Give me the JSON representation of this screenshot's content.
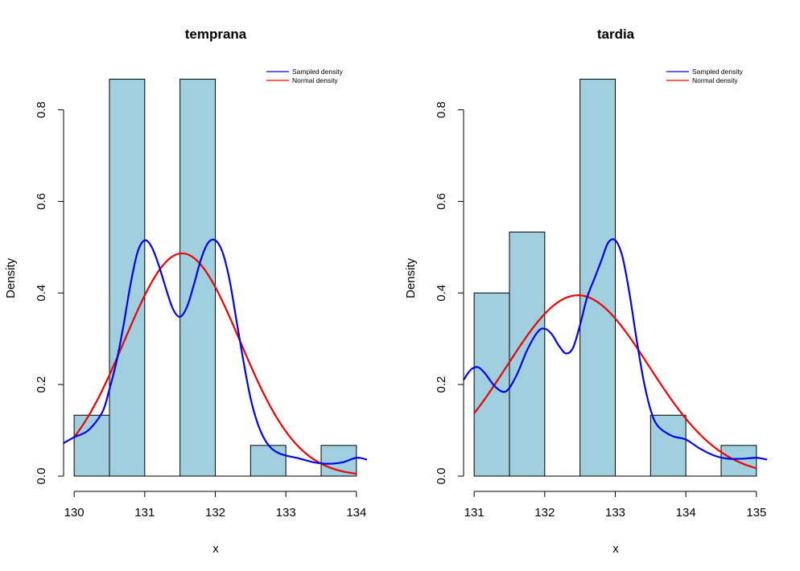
{
  "colors": {
    "bar_fill": "#a0d0e0",
    "sampled": "#0000ee",
    "normal": "#ee0000",
    "axis": "#000000"
  },
  "chart_data": [
    {
      "type": "histogram",
      "title": "temprana",
      "xlabel": "x",
      "ylabel": "Density",
      "xlim": [
        129.85,
        134.15
      ],
      "ylim": [
        0,
        0.866
      ],
      "x_ticks": [
        130,
        131,
        132,
        133,
        134
      ],
      "y_ticks": [
        0.0,
        0.2,
        0.4,
        0.6,
        0.8
      ],
      "y_tick_labels": [
        "0.0",
        "0.2",
        "0.4",
        "0.6",
        "0.8"
      ],
      "bins": [
        {
          "start": 130.0,
          "end": 130.5,
          "density": 0.133
        },
        {
          "start": 130.5,
          "end": 131.0,
          "density": 0.867
        },
        {
          "start": 131.0,
          "end": 131.5,
          "density": 0.0
        },
        {
          "start": 131.5,
          "end": 132.0,
          "density": 0.867
        },
        {
          "start": 132.0,
          "end": 132.5,
          "density": 0.0
        },
        {
          "start": 132.5,
          "end": 133.0,
          "density": 0.067
        },
        {
          "start": 133.0,
          "end": 133.5,
          "density": 0.0
        },
        {
          "start": 133.5,
          "end": 134.0,
          "density": 0.067
        }
      ],
      "series": [
        {
          "name": "Sampled density",
          "color": "#0000ee",
          "x": [
            129.85,
            130.0,
            130.2,
            130.4,
            130.5,
            130.6,
            130.7,
            130.8,
            130.9,
            131.0,
            131.1,
            131.2,
            131.3,
            131.4,
            131.5,
            131.6,
            131.7,
            131.8,
            131.9,
            132.0,
            132.1,
            132.2,
            132.3,
            132.4,
            132.5,
            132.6,
            132.7,
            132.8,
            132.9,
            133.0,
            133.2,
            133.4,
            133.6,
            133.8,
            134.0,
            134.15
          ],
          "y": [
            0.072,
            0.085,
            0.1,
            0.14,
            0.19,
            0.25,
            0.33,
            0.42,
            0.49,
            0.515,
            0.5,
            0.46,
            0.41,
            0.365,
            0.348,
            0.37,
            0.42,
            0.475,
            0.51,
            0.515,
            0.49,
            0.43,
            0.34,
            0.25,
            0.17,
            0.115,
            0.08,
            0.06,
            0.05,
            0.045,
            0.038,
            0.03,
            0.027,
            0.03,
            0.04,
            0.036
          ]
        },
        {
          "name": "Normal density",
          "color": "#ee0000",
          "mean": 131.53,
          "sd": 0.82,
          "x_range": [
            130.0,
            134.0
          ]
        }
      ],
      "legend": {
        "position": "top-right",
        "entries": [
          "Sampled density",
          "Normal density"
        ]
      }
    },
    {
      "type": "histogram",
      "title": "tardia",
      "xlabel": "x",
      "ylabel": "Density",
      "xlim": [
        130.85,
        135.15
      ],
      "ylim": [
        0,
        0.866
      ],
      "x_ticks": [
        131,
        132,
        133,
        134,
        135
      ],
      "y_ticks": [
        0.0,
        0.2,
        0.4,
        0.6,
        0.8
      ],
      "y_tick_labels": [
        "0.0",
        "0.2",
        "0.4",
        "0.6",
        "0.8"
      ],
      "bins": [
        {
          "start": 131.0,
          "end": 131.5,
          "density": 0.4
        },
        {
          "start": 131.5,
          "end": 132.0,
          "density": 0.533
        },
        {
          "start": 132.0,
          "end": 132.5,
          "density": 0.0
        },
        {
          "start": 132.5,
          "end": 133.0,
          "density": 0.867
        },
        {
          "start": 133.0,
          "end": 133.5,
          "density": 0.0
        },
        {
          "start": 133.5,
          "end": 134.0,
          "density": 0.133
        },
        {
          "start": 134.0,
          "end": 134.5,
          "density": 0.0
        },
        {
          "start": 134.5,
          "end": 135.0,
          "density": 0.067
        }
      ],
      "series": [
        {
          "name": "Sampled density",
          "color": "#0000ee",
          "x": [
            130.85,
            130.95,
            131.05,
            131.15,
            131.3,
            131.45,
            131.6,
            131.75,
            131.9,
            132.0,
            132.1,
            132.2,
            132.3,
            132.4,
            132.5,
            132.6,
            132.7,
            132.8,
            132.9,
            133.0,
            133.1,
            133.2,
            133.3,
            133.4,
            133.5,
            133.6,
            133.8,
            134.0,
            134.2,
            134.4,
            134.6,
            134.8,
            135.0,
            135.15
          ],
          "y": [
            0.21,
            0.232,
            0.238,
            0.225,
            0.195,
            0.185,
            0.22,
            0.275,
            0.315,
            0.322,
            0.31,
            0.285,
            0.268,
            0.28,
            0.33,
            0.39,
            0.43,
            0.47,
            0.51,
            0.515,
            0.48,
            0.4,
            0.3,
            0.21,
            0.145,
            0.11,
            0.088,
            0.08,
            0.06,
            0.045,
            0.038,
            0.038,
            0.04,
            0.036
          ]
        },
        {
          "name": "Normal density",
          "color": "#ee0000",
          "mean": 132.47,
          "sd": 1.01,
          "x_range": [
            131.0,
            135.0
          ]
        }
      ],
      "legend": {
        "position": "top-right",
        "entries": [
          "Sampled density",
          "Normal density"
        ]
      }
    }
  ]
}
